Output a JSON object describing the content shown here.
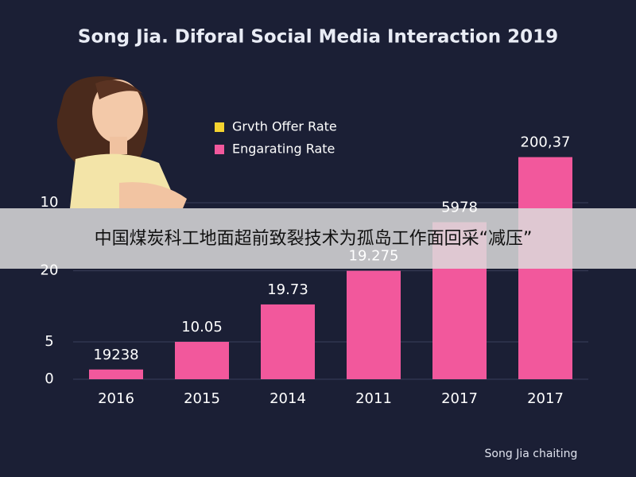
{
  "chart_data": {
    "type": "bar",
    "title": "Song Jia. Diforal Social Media Interaction 2019",
    "categories": [
      "2016",
      "2015",
      "2014",
      "2011",
      "2017",
      "2017"
    ],
    "values": [
      1.3,
      5,
      10,
      14.5,
      21,
      29.7
    ],
    "annotations": [
      "19238",
      "10.05",
      "19.73",
      "19.275",
      "5978",
      "200,37"
    ],
    "color": "#f2589c",
    "ylim": [
      0,
      32
    ],
    "yticks": [
      0,
      5,
      {
        "value": 14.5,
        "label": "20"
      },
      {
        "value": 23.6,
        "label": "10"
      }
    ],
    "grid": true,
    "legend": [
      {
        "name": "Grvth Offer Rate",
        "color": "#f5d330"
      },
      {
        "name": "Engarating Rate",
        "color": "#f2589c"
      }
    ],
    "source": "Song Jia chaiting"
  },
  "banner": {
    "text": "中国煤炭科工地面超前致裂技术为孤岛工作面回采“减压”"
  }
}
